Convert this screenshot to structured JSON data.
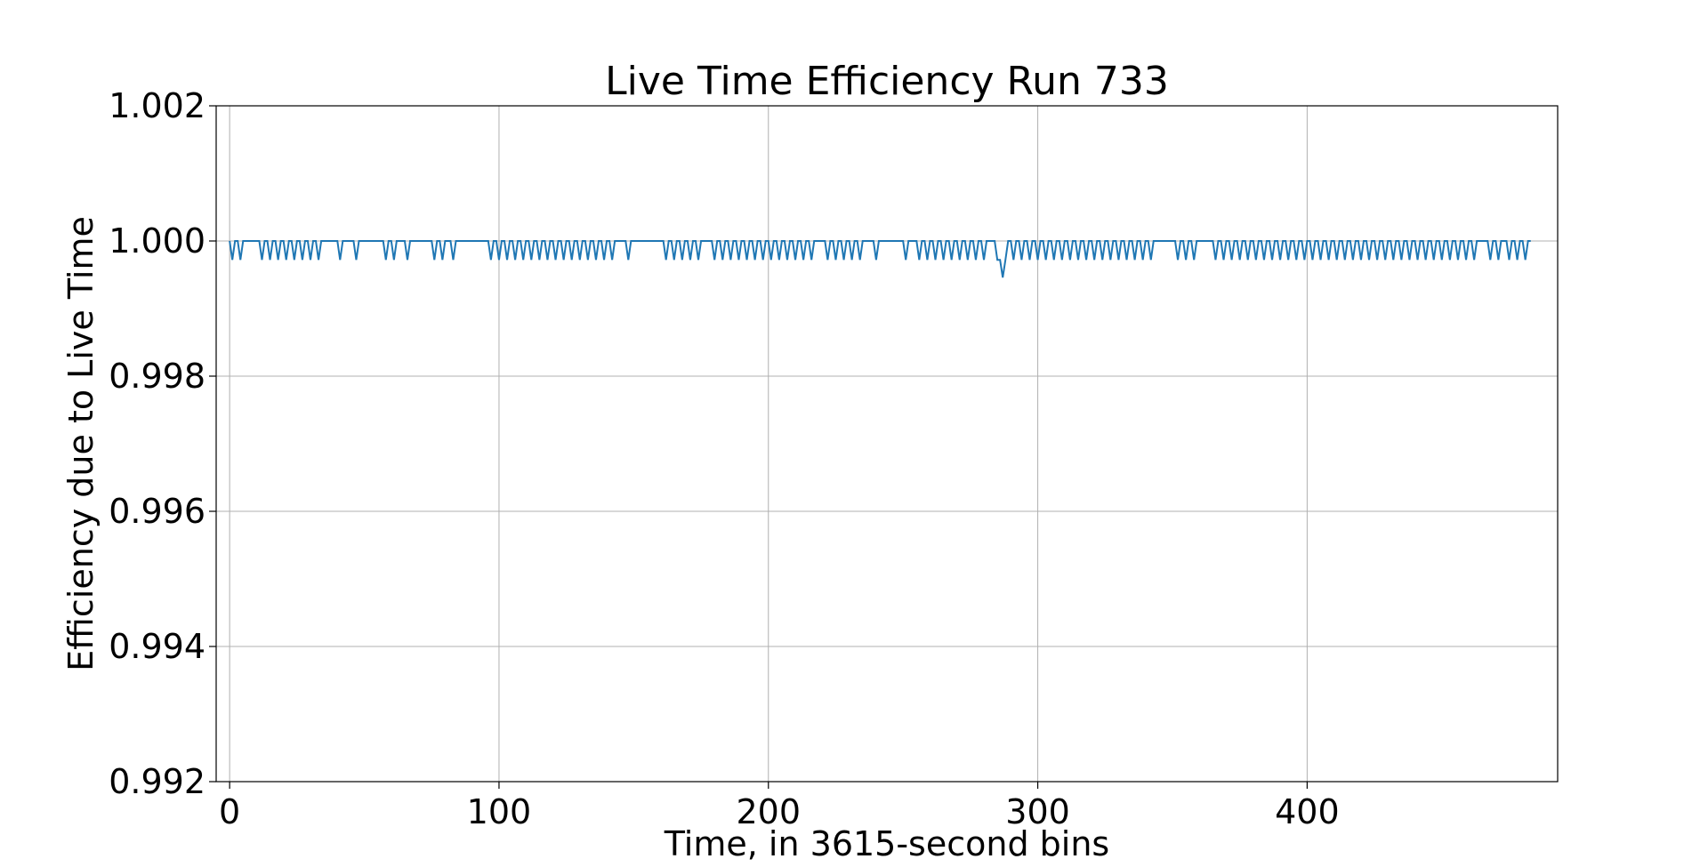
{
  "chart_data": {
    "type": "line",
    "title": "Live Time Efficiency Run 733",
    "xlabel": "Time, in 3615-second bins",
    "ylabel": "Efficiency due to Live Time",
    "xlim": [
      -5,
      493
    ],
    "ylim": [
      0.992,
      1.002
    ],
    "xticks": [
      0,
      100,
      200,
      300,
      400
    ],
    "yticks": [
      0.992,
      0.994,
      0.996,
      0.998,
      1.0,
      1.002
    ],
    "xtick_labels": [
      "0",
      "100",
      "200",
      "300",
      "400"
    ],
    "ytick_labels": [
      "0.992",
      "0.994",
      "0.996",
      "0.998",
      "1.000",
      "1.002"
    ],
    "grid": true,
    "series": [
      {
        "color": "#1f77b4",
        "baseline": 1.0,
        "dip_value": 0.99972,
        "x_end": 483,
        "dip_x": [
          1,
          4,
          12,
          15,
          18,
          21,
          24,
          27,
          30,
          33,
          41,
          47,
          58,
          61,
          66,
          76,
          79,
          83,
          97,
          100,
          103,
          106,
          109,
          112,
          115,
          118,
          121,
          124,
          127,
          130,
          133,
          136,
          139,
          142,
          148,
          162,
          165,
          168,
          171,
          174,
          180,
          183,
          186,
          189,
          192,
          195,
          198,
          201,
          204,
          207,
          210,
          213,
          216,
          222,
          225,
          228,
          231,
          234,
          240,
          251,
          256,
          259,
          262,
          265,
          268,
          271,
          274,
          277,
          280,
          285,
          291,
          294,
          297,
          300,
          303,
          306,
          309,
          312,
          315,
          318,
          321,
          324,
          327,
          330,
          333,
          336,
          339,
          342,
          352,
          355,
          358,
          366,
          369,
          372,
          375,
          378,
          381,
          384,
          387,
          390,
          393,
          396,
          399,
          402,
          405,
          408,
          411,
          414,
          417,
          420,
          423,
          426,
          429,
          432,
          435,
          438,
          441,
          444,
          447,
          450,
          453,
          456,
          459,
          462,
          468,
          471,
          475,
          478,
          481
        ],
        "special_points": [
          [
            285,
            0.99972
          ],
          [
            286,
            0.99972
          ],
          [
            287,
            0.99946
          ],
          [
            288,
            0.99972
          ]
        ]
      }
    ]
  }
}
